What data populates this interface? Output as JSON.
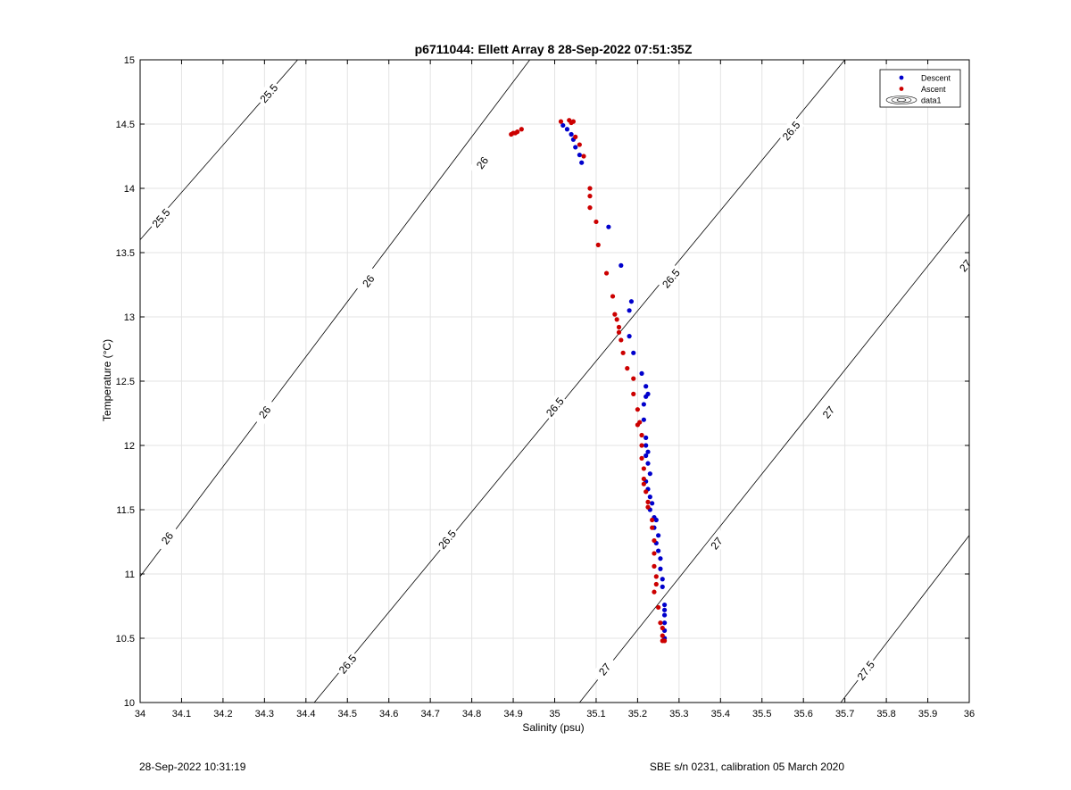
{
  "chart_data": {
    "type": "scatter",
    "title": "p6711044: Ellett Array 8 28-Sep-2022 07:51:35Z",
    "xlabel": "Salinity (psu)",
    "ylabel": "Temperature (°C)",
    "xlim": [
      34,
      36
    ],
    "ylim": [
      10,
      15
    ],
    "xticks": [
      "34",
      "34.1",
      "34.2",
      "34.3",
      "34.4",
      "34.5",
      "34.6",
      "34.7",
      "34.8",
      "34.9",
      "35",
      "35.1",
      "35.2",
      "35.3",
      "35.4",
      "35.5",
      "35.6",
      "35.7",
      "35.8",
      "35.9",
      "36"
    ],
    "yticks": [
      "10",
      "10.5",
      "11",
      "11.5",
      "12",
      "12.5",
      "13",
      "13.5",
      "14",
      "14.5",
      "15"
    ],
    "grid": true,
    "legend_position": "top-right",
    "legend": [
      {
        "label": "Descent",
        "color": "#0000cc",
        "kind": "marker"
      },
      {
        "label": "Ascent",
        "color": "#cc0000",
        "kind": "marker"
      },
      {
        "label": "data1",
        "color": "#000000",
        "kind": "contour"
      }
    ],
    "contours": [
      {
        "level": "25.5",
        "points": [
          [
            34.0,
            13.6
          ],
          [
            34.38,
            15.0
          ]
        ],
        "labels": [
          [
            34.05,
            13.77
          ],
          [
            34.31,
            14.74
          ]
        ]
      },
      {
        "level": "26",
        "points": [
          [
            34.0,
            10.98
          ],
          [
            34.94,
            15.0
          ]
        ],
        "labels": [
          [
            34.065,
            11.28
          ],
          [
            34.3,
            12.26
          ],
          [
            34.55,
            13.28
          ],
          [
            34.825,
            14.2
          ]
        ]
      },
      {
        "level": "26.5",
        "points": [
          [
            34.42,
            10.0
          ],
          [
            35.7,
            15.0
          ]
        ],
        "labels": [
          [
            34.5,
            10.3
          ],
          [
            34.74,
            11.27
          ],
          [
            35.0,
            12.3
          ],
          [
            35.28,
            13.3
          ],
          [
            35.57,
            14.45
          ]
        ]
      },
      {
        "level": "27",
        "points": [
          [
            35.06,
            10.0
          ],
          [
            36.0,
            13.8
          ]
        ],
        "labels": [
          [
            35.12,
            10.26
          ],
          [
            35.39,
            11.24
          ],
          [
            35.66,
            12.26
          ],
          [
            35.99,
            13.4
          ]
        ]
      },
      {
        "level": "27.5",
        "points": [
          [
            35.69,
            10.0
          ],
          [
            36.0,
            11.3
          ]
        ],
        "labels": [
          [
            35.75,
            10.25
          ]
        ]
      }
    ],
    "series": [
      {
        "name": "Descent",
        "color": "#0000cc",
        "points": [
          [
            35.02,
            14.49
          ],
          [
            35.03,
            14.46
          ],
          [
            35.04,
            14.42
          ],
          [
            35.045,
            14.38
          ],
          [
            35.05,
            14.32
          ],
          [
            35.06,
            14.26
          ],
          [
            35.065,
            14.2
          ],
          [
            35.13,
            13.7
          ],
          [
            35.16,
            13.4
          ],
          [
            35.185,
            13.12
          ],
          [
            35.18,
            13.05
          ],
          [
            35.18,
            12.85
          ],
          [
            35.19,
            12.72
          ],
          [
            35.21,
            12.56
          ],
          [
            35.22,
            12.46
          ],
          [
            35.225,
            12.4
          ],
          [
            35.22,
            12.38
          ],
          [
            35.215,
            12.32
          ],
          [
            35.215,
            12.2
          ],
          [
            35.22,
            12.06
          ],
          [
            35.22,
            12.0
          ],
          [
            35.225,
            11.95
          ],
          [
            35.22,
            11.92
          ],
          [
            35.225,
            11.86
          ],
          [
            35.23,
            11.78
          ],
          [
            35.22,
            11.72
          ],
          [
            35.225,
            11.66
          ],
          [
            35.23,
            11.6
          ],
          [
            35.235,
            11.55
          ],
          [
            35.23,
            11.5
          ],
          [
            35.24,
            11.44
          ],
          [
            35.245,
            11.42
          ],
          [
            35.24,
            11.36
          ],
          [
            35.25,
            11.3
          ],
          [
            35.245,
            11.24
          ],
          [
            35.25,
            11.18
          ],
          [
            35.255,
            11.12
          ],
          [
            35.255,
            11.04
          ],
          [
            35.26,
            10.96
          ],
          [
            35.26,
            10.9
          ],
          [
            35.265,
            10.76
          ],
          [
            35.265,
            10.72
          ],
          [
            35.265,
            10.68
          ],
          [
            35.265,
            10.62
          ],
          [
            35.265,
            10.56
          ],
          [
            35.265,
            10.5
          ]
        ]
      },
      {
        "name": "Ascent",
        "color": "#cc0000",
        "points": [
          [
            34.895,
            14.42
          ],
          [
            34.9,
            14.43
          ],
          [
            34.905,
            14.43
          ],
          [
            34.91,
            14.44
          ],
          [
            34.92,
            14.46
          ],
          [
            35.015,
            14.52
          ],
          [
            35.035,
            14.53
          ],
          [
            35.04,
            14.51
          ],
          [
            35.045,
            14.52
          ],
          [
            35.05,
            14.4
          ],
          [
            35.06,
            14.34
          ],
          [
            35.07,
            14.25
          ],
          [
            35.085,
            14.0
          ],
          [
            35.085,
            13.94
          ],
          [
            35.085,
            13.85
          ],
          [
            35.1,
            13.74
          ],
          [
            35.105,
            13.56
          ],
          [
            35.125,
            13.34
          ],
          [
            35.14,
            13.16
          ],
          [
            35.145,
            13.02
          ],
          [
            35.15,
            12.98
          ],
          [
            35.155,
            12.92
          ],
          [
            35.155,
            12.88
          ],
          [
            35.16,
            12.82
          ],
          [
            35.165,
            12.72
          ],
          [
            35.175,
            12.6
          ],
          [
            35.19,
            12.52
          ],
          [
            35.19,
            12.4
          ],
          [
            35.2,
            12.28
          ],
          [
            35.205,
            12.18
          ],
          [
            35.2,
            12.16
          ],
          [
            35.21,
            12.08
          ],
          [
            35.21,
            12.0
          ],
          [
            35.21,
            11.9
          ],
          [
            35.215,
            11.82
          ],
          [
            35.215,
            11.74
          ],
          [
            35.215,
            11.7
          ],
          [
            35.22,
            11.64
          ],
          [
            35.225,
            11.56
          ],
          [
            35.225,
            11.52
          ],
          [
            35.235,
            11.42
          ],
          [
            35.235,
            11.36
          ],
          [
            35.24,
            11.26
          ],
          [
            35.24,
            11.16
          ],
          [
            35.24,
            11.06
          ],
          [
            35.245,
            10.98
          ],
          [
            35.245,
            10.92
          ],
          [
            35.24,
            10.86
          ],
          [
            35.25,
            10.74
          ],
          [
            35.255,
            10.62
          ],
          [
            35.26,
            10.58
          ],
          [
            35.26,
            10.52
          ],
          [
            35.26,
            10.48
          ],
          [
            35.265,
            10.48
          ]
        ]
      }
    ]
  },
  "footer": {
    "left": "28-Sep-2022 10:31:19",
    "right": "SBE s/n 0231, calibration 05 March 2020"
  }
}
